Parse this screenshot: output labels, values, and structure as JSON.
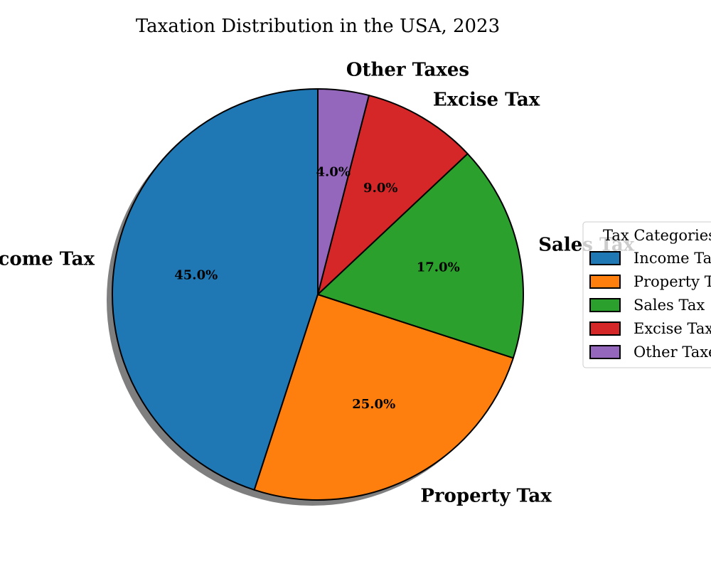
{
  "chart_data": {
    "type": "pie",
    "title": "Taxation Distribution in the USA, 2023",
    "categories": [
      "Income Tax",
      "Property Tax",
      "Sales Tax",
      "Excise Tax",
      "Other Taxes"
    ],
    "values": [
      45.0,
      25.0,
      17.0,
      9.0,
      4.0
    ],
    "value_labels": [
      "45.0%",
      "25.0%",
      "17.0%",
      "9.0%",
      "4.0%"
    ],
    "colors": [
      "#1f77b4",
      "#ff7f0e",
      "#2ca02c",
      "#d62728",
      "#9467bd"
    ],
    "start_angle_deg": 90,
    "direction": "counterclockwise",
    "shadow": true,
    "legend": {
      "title": "Tax Categories",
      "placement": "center-right",
      "entries": [
        "Income Tax",
        "Property Tax",
        "Sales Tax",
        "Excise Tax",
        "Other Taxes"
      ]
    }
  }
}
